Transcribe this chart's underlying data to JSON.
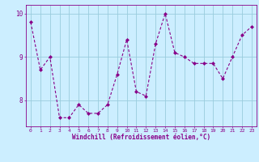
{
  "x": [
    0,
    1,
    2,
    3,
    4,
    5,
    6,
    7,
    8,
    9,
    10,
    11,
    12,
    13,
    14,
    15,
    16,
    17,
    18,
    19,
    20,
    21,
    22,
    23
  ],
  "y": [
    9.8,
    8.7,
    9.0,
    7.6,
    7.6,
    7.9,
    7.7,
    7.7,
    7.9,
    8.6,
    9.4,
    8.2,
    8.1,
    9.3,
    10.0,
    9.1,
    9.0,
    8.85,
    8.85,
    8.85,
    8.5,
    9.0,
    9.5,
    9.7
  ],
  "line_color": "#880088",
  "marker": "D",
  "marker_size": 2.0,
  "bg_color": "#cceeff",
  "grid_color": "#99ccdd",
  "xlabel": "Windchill (Refroidissement éolien,°C)",
  "xlabel_color": "#880088",
  "tick_color": "#880088",
  "label_color": "#880088",
  "ylim": [
    7.4,
    10.2
  ],
  "xlim": [
    -0.5,
    23.5
  ],
  "yticks": [
    8,
    9,
    10
  ],
  "xticks": [
    0,
    1,
    2,
    3,
    4,
    5,
    6,
    7,
    8,
    9,
    10,
    11,
    12,
    13,
    14,
    15,
    16,
    17,
    18,
    19,
    20,
    21,
    22,
    23
  ]
}
